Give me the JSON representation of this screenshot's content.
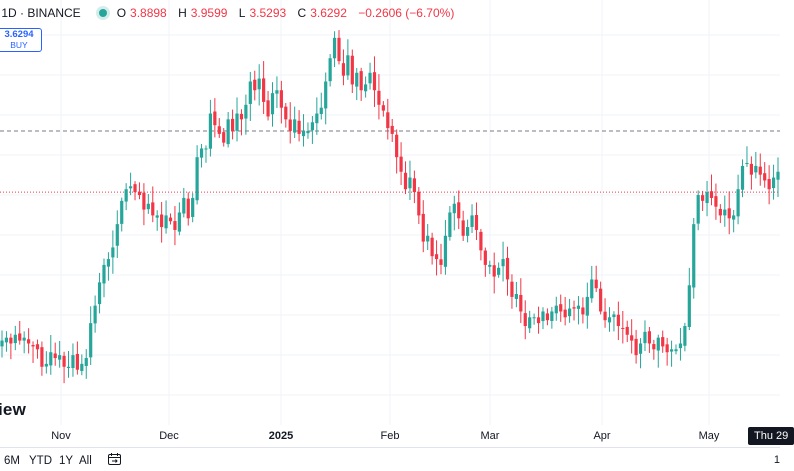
{
  "header": {
    "symbol_suffix": "· 1D · BINANCE",
    "ohlc": [
      {
        "k": "O",
        "v": "3.8898"
      },
      {
        "k": "H",
        "v": "3.9599"
      },
      {
        "k": "L",
        "v": "3.5293"
      },
      {
        "k": "C",
        "v": "3.6292"
      }
    ],
    "change": "−0.2606 (−6.70%)",
    "status_color": "#26a69a"
  },
  "buy_button": {
    "price": "3.6294",
    "label": "BUY"
  },
  "logo_text": "iew",
  "x_axis_labels": [
    "Nov",
    "Dec",
    "2025",
    "Feb",
    "Mar",
    "Apr",
    "May"
  ],
  "crosshair_date": "Thu 29",
  "range_buttons": [
    "6M",
    "YTD",
    "1Y",
    "All"
  ],
  "right_cut_label": "1",
  "colors": {
    "up": "#26a69a",
    "down": "#f23645",
    "grid": "#f0f3fa"
  },
  "chart_data": {
    "type": "candlestick",
    "up_color": "#26a69a",
    "down_color": "#f23645",
    "closes": [
      6.45,
      6.5,
      6.4,
      6.55,
      6.45,
      6.5,
      6.4,
      6.35,
      6.3,
      6.0,
      6.05,
      6.25,
      6.15,
      6.2,
      6.0,
      6.0,
      6.2,
      5.95,
      6.05,
      6.15,
      6.75,
      7.05,
      7.45,
      7.75,
      7.85,
      8.05,
      8.45,
      8.85,
      9.05,
      9.1,
      9.0,
      8.95,
      8.7,
      8.8,
      8.6,
      8.6,
      8.4,
      8.6,
      8.5,
      8.35,
      8.65,
      8.9,
      8.55,
      8.9,
      9.6,
      9.75,
      9.75,
      10.35,
      10.15,
      10.0,
      9.85,
      10.25,
      10.05,
      10.35,
      10.25,
      10.5,
      10.9,
      10.75,
      10.95,
      10.55,
      10.3,
      10.7,
      10.75,
      10.45,
      10.25,
      10.05,
      10.25,
      10.0,
      10.05,
      10.05,
      10.2,
      10.35,
      10.45,
      10.9,
      11.3,
      11.65,
      11.25,
      11.0,
      11.35,
      10.85,
      11.05,
      10.75,
      10.85,
      11.05,
      10.75,
      10.5,
      10.4,
      10.1,
      10.0,
      9.6,
      9.35,
      9.05,
      9.25,
      9.0,
      8.6,
      8.15,
      8.25,
      7.9,
      7.85,
      7.75,
      8.25,
      8.65,
      8.8,
      8.55,
      8.25,
      8.4,
      8.6,
      8.35,
      8.0,
      7.75,
      7.75,
      7.55,
      7.7,
      7.85,
      7.5,
      7.2,
      7.25,
      6.95,
      6.7,
      6.85,
      6.85,
      6.75,
      6.95,
      6.8,
      6.95,
      7.05,
      6.95,
      6.85,
      7.0,
      7.0,
      7.05,
      6.9,
      7.2,
      7.5,
      7.35,
      6.95,
      6.8,
      6.85,
      6.9,
      6.7,
      6.65,
      6.55,
      6.45,
      6.2,
      6.4,
      6.6,
      6.4,
      6.3,
      6.5,
      6.35,
      6.25,
      6.3,
      6.3,
      6.4,
      6.7,
      7.4,
      8.45,
      8.95,
      8.85,
      9.0,
      8.9,
      8.75,
      8.6,
      8.7,
      8.55,
      8.6,
      9.05,
      9.45,
      9.5,
      9.3,
      9.45,
      9.3,
      9.2,
      9.05,
      9.25,
      9.35
    ],
    "y_view": {
      "min": 5.0,
      "max": 12.3
    },
    "reference_lines": [
      {
        "value": 10.05,
        "style": "dashed",
        "color": "#787b86"
      },
      {
        "value": 9.0,
        "style": "dotted",
        "color": "#f23645"
      }
    ]
  }
}
